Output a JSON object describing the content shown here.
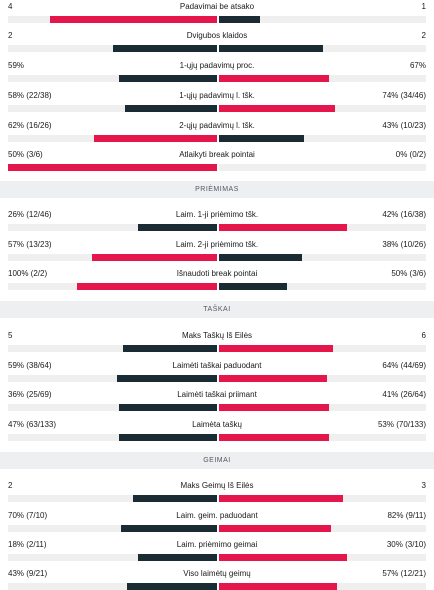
{
  "colors": {
    "dark_bar": "#1b2b34",
    "red_bar": "#e5164c",
    "track": "#efefef",
    "section_bg": "#edeff1"
  },
  "serve": [
    {
      "label": "Padavimai be atsako",
      "left": "4",
      "right": "1",
      "left_frac": 0.8,
      "right_frac": 0.2,
      "left_color": "red",
      "right_color": "dark"
    },
    {
      "label": "Dvigubos klaidos",
      "left": "2",
      "right": "2",
      "left_frac": 0.5,
      "right_frac": 0.5,
      "left_color": "dark",
      "right_color": "dark"
    },
    {
      "label": "1-ųjų padavimų proc.",
      "left": "59%",
      "right": "67%",
      "left_frac": 0.47,
      "right_frac": 0.53,
      "left_color": "dark",
      "right_color": "red"
    },
    {
      "label": "1-ųjų padavimų l. tšk.",
      "left": "58% (22/38)",
      "right": "74% (34/46)",
      "left_frac": 0.44,
      "right_frac": 0.56,
      "left_color": "dark",
      "right_color": "red"
    },
    {
      "label": "2-ųjų padavimų l. tšk.",
      "left": "62% (16/26)",
      "right": "43% (10/23)",
      "left_frac": 0.59,
      "right_frac": 0.41,
      "left_color": "red",
      "right_color": "dark"
    },
    {
      "label": "Atlaikyti break pointai",
      "left": "50% (3/6)",
      "right": "0% (0/2)",
      "left_frac": 1.0,
      "right_frac": 0.0,
      "left_color": "red",
      "right_color": "dark"
    }
  ],
  "return_header": "PRIĖMIMAS",
  "return": [
    {
      "label": "Laim. 1-ji priėmimo tšk.",
      "left": "26% (12/46)",
      "right": "42% (16/38)",
      "left_frac": 0.38,
      "right_frac": 0.62,
      "left_color": "dark",
      "right_color": "red"
    },
    {
      "label": "Laim. 2-ji priėmimo tšk.",
      "left": "57% (13/23)",
      "right": "38% (10/26)",
      "left_frac": 0.6,
      "right_frac": 0.4,
      "left_color": "red",
      "right_color": "dark"
    },
    {
      "label": "Išnaudoti break pointai",
      "left": "100% (2/2)",
      "right": "50% (3/6)",
      "left_frac": 0.67,
      "right_frac": 0.33,
      "left_color": "red",
      "right_color": "dark"
    }
  ],
  "points_header": "TAŠKAI",
  "points": [
    {
      "label": "Maks Taškų Iš Eilės",
      "left": "5",
      "right": "6",
      "left_frac": 0.45,
      "right_frac": 0.55,
      "left_color": "dark",
      "right_color": "red"
    },
    {
      "label": "Laimėti taškai paduodant",
      "left": "59% (38/64)",
      "right": "64% (44/69)",
      "left_frac": 0.48,
      "right_frac": 0.52,
      "left_color": "dark",
      "right_color": "red"
    },
    {
      "label": "Laimėti taškai priimant",
      "left": "36% (25/69)",
      "right": "41% (26/64)",
      "left_frac": 0.47,
      "right_frac": 0.53,
      "left_color": "dark",
      "right_color": "red"
    },
    {
      "label": "Laimėta taškų",
      "left": "47% (63/133)",
      "right": "53% (70/133)",
      "left_frac": 0.47,
      "right_frac": 0.53,
      "left_color": "dark",
      "right_color": "red"
    }
  ],
  "games_header": "GEIMAI",
  "games": [
    {
      "label": "Maks Geimų Iš Eilės",
      "left": "2",
      "right": "3",
      "left_frac": 0.4,
      "right_frac": 0.6,
      "left_color": "dark",
      "right_color": "red"
    },
    {
      "label": "Laim. geim. paduodant",
      "left": "70% (7/10)",
      "right": "82% (9/11)",
      "left_frac": 0.46,
      "right_frac": 0.54,
      "left_color": "dark",
      "right_color": "red"
    },
    {
      "label": "Laim. priėmimo geimai",
      "left": "18% (2/11)",
      "right": "30% (3/10)",
      "left_frac": 0.38,
      "right_frac": 0.62,
      "left_color": "dark",
      "right_color": "red"
    },
    {
      "label": "Viso laimėtų geimų",
      "left": "43% (9/21)",
      "right": "57% (12/21)",
      "left_frac": 0.43,
      "right_frac": 0.57,
      "left_color": "dark",
      "right_color": "red"
    }
  ]
}
